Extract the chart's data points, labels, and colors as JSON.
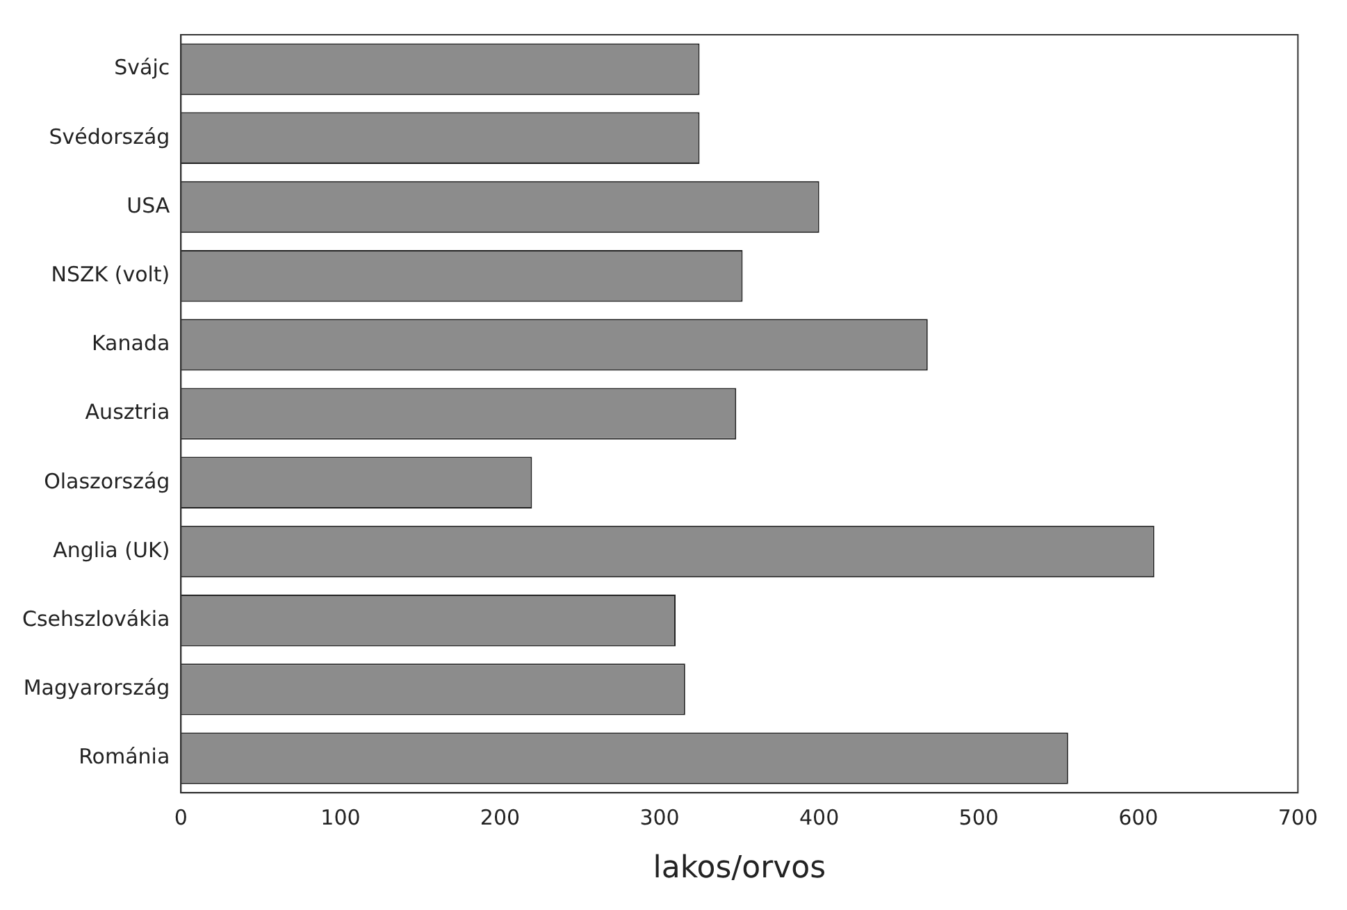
{
  "chart_data": {
    "type": "bar",
    "orientation": "horizontal",
    "xlabel": "lakos/orvos",
    "categories": [
      "Svájc",
      "Svédország",
      "USA",
      "NSZK (volt)",
      "Kanada",
      "Ausztria",
      "Olaszország",
      "Anglia (UK)",
      "Csehszlovákia",
      "Magyarország",
      "Románia"
    ],
    "values": [
      325,
      325,
      400,
      352,
      468,
      348,
      220,
      610,
      310,
      316,
      556
    ],
    "color": "#8c8c8c",
    "xlim": [
      0,
      700
    ],
    "xticks": [
      0,
      100,
      200,
      300,
      400,
      500,
      600,
      700
    ],
    "grid": false,
    "legend": false
  }
}
